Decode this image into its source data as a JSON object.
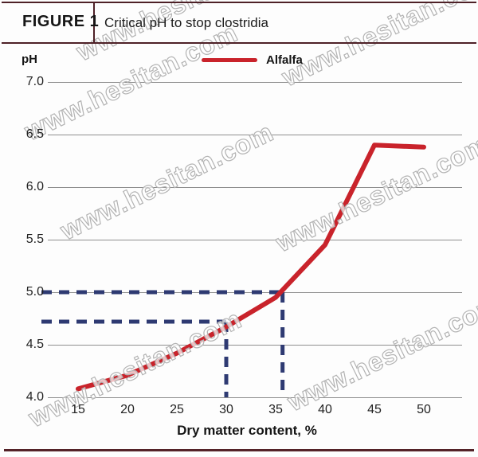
{
  "header": {
    "figure_label": "FIGURE 1",
    "title": "Critical pH to stop clostridia"
  },
  "legend": {
    "label": "Alfalfa"
  },
  "watermark": {
    "text": "www.hesitan.com"
  },
  "colors": {
    "line_red": "#c9232b",
    "guide_navy": "#2e3a72",
    "grid_gray": "#8f8f8f",
    "border_maroon": "#4e2127"
  },
  "chart_data": {
    "type": "line",
    "title": "Critical pH to stop clostridia",
    "ylabel": "pH",
    "xlabel": "Dry matter content, %",
    "xlim": [
      12,
      54
    ],
    "ylim": [
      4.0,
      7.0
    ],
    "grid": "horizontal",
    "legend_position": "top",
    "yticks": [
      7.0,
      6.5,
      6.0,
      5.5,
      5.0,
      4.5,
      4.0
    ],
    "ytick_labels": [
      "7.0",
      "6.5",
      "6.0",
      "5.5",
      "5.0",
      "4.5",
      "4.0"
    ],
    "xticks": [
      15,
      20,
      25,
      30,
      35,
      40,
      45,
      50
    ],
    "xtick_labels": [
      "15",
      "20",
      "25",
      "30",
      "35",
      "40",
      "45",
      "50"
    ],
    "series": [
      {
        "name": "Alfalfa",
        "color": "#c9232b",
        "points": [
          [
            15,
            4.08
          ],
          [
            20,
            4.21
          ],
          [
            25,
            4.42
          ],
          [
            30,
            4.67
          ],
          [
            35,
            4.95
          ],
          [
            40,
            5.45
          ],
          [
            45,
            6.4
          ],
          [
            50,
            6.38
          ]
        ]
      }
    ],
    "guides": {
      "color": "#2e3a72",
      "note": "dashed reference lines marking critical pH at 30% and ~35.7% dry matter",
      "lines": [
        {
          "type": "h",
          "y": 5.0,
          "x_end": 35.7
        },
        {
          "type": "h",
          "y": 4.72,
          "x_end": 30
        },
        {
          "type": "v",
          "x": 30,
          "y_top": 4.72
        },
        {
          "type": "v",
          "x": 35.7,
          "y_top": 5.0
        }
      ]
    }
  }
}
